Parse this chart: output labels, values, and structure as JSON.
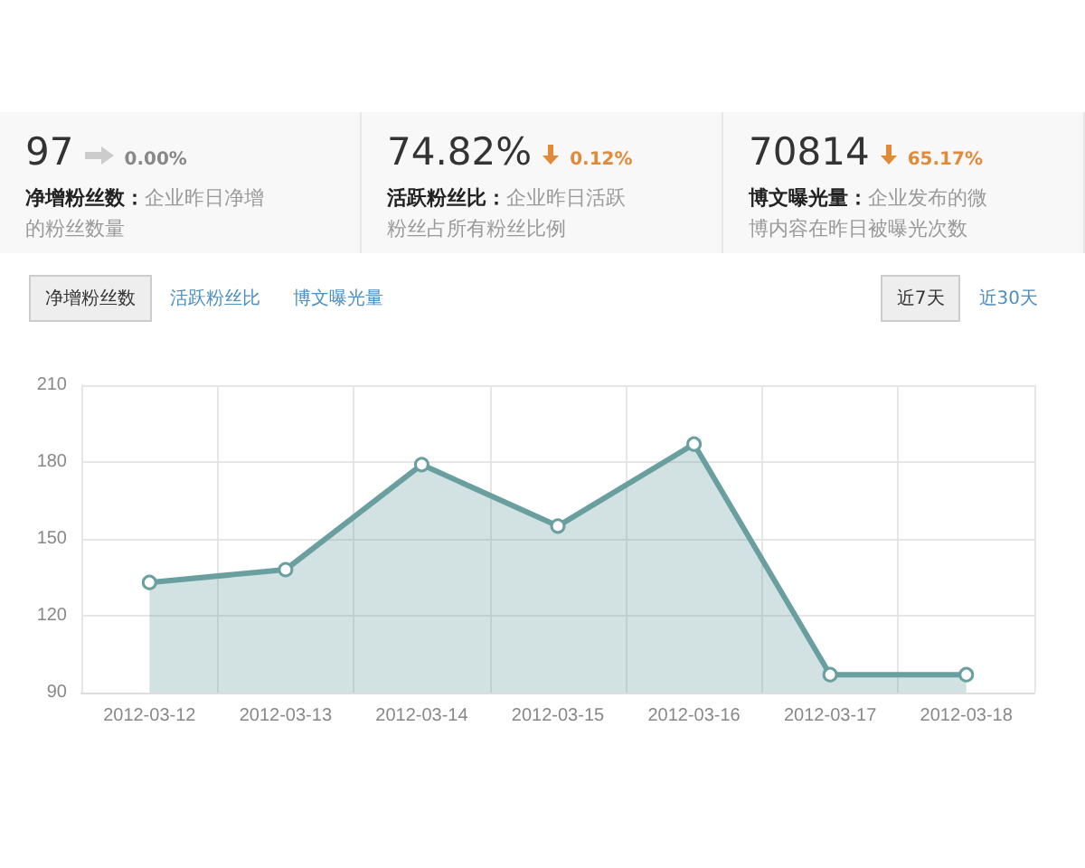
{
  "chart_data": {
    "type": "area",
    "categories": [
      "2012-03-12",
      "2012-03-13",
      "2012-03-14",
      "2012-03-15",
      "2012-03-16",
      "2012-03-17",
      "2012-03-18"
    ],
    "values": [
      133,
      138,
      179,
      155,
      187,
      97,
      97
    ],
    "color": "#6a9f9f",
    "ylim": [
      90,
      210
    ],
    "yticks": [
      90,
      120,
      150,
      180,
      210
    ],
    "grid": true,
    "marker": "circle",
    "line_style": "solid",
    "annotations": [
      "97",
      "0.00%",
      "净增粉丝数：",
      "企业昨日净增的粉丝数量",
      "74.82%",
      "0.12%",
      "活跃粉丝比：",
      "企业昨日活跃粉丝占所有粉丝比例",
      "70814",
      "65.17%",
      "博文曝光量：",
      "企业发布的微博内容在昨日被曝光次数",
      "净增粉丝数",
      "活跃粉丝比",
      "博文曝光量",
      "近7天",
      "近30天"
    ]
  }
}
